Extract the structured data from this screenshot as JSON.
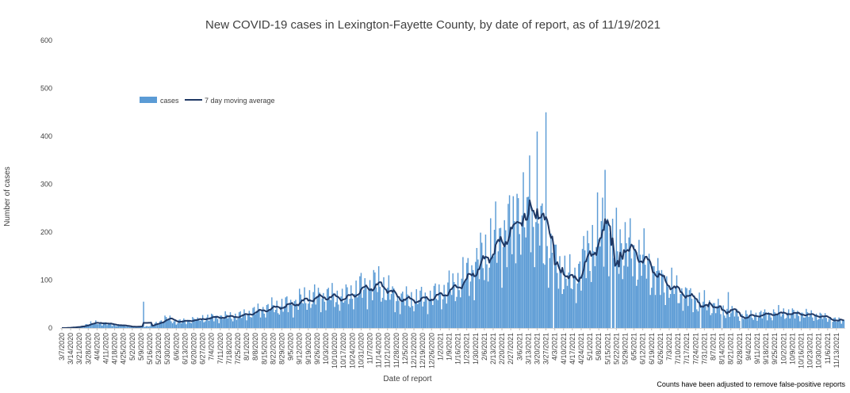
{
  "chart_data": {
    "type": "bar",
    "title": "New COVID-19 cases in Lexington-Fayette County, by date of report, as of 11/19/2021",
    "xlabel": "Date of report",
    "ylabel": "Number of cases",
    "ylim": [
      0,
      600
    ],
    "yticks": [
      "0",
      "100",
      "200",
      "300",
      "400",
      "500",
      "600"
    ],
    "grid": false,
    "legend_position": "top-left",
    "footnote": "Counts have been adjusted to remove false-positive reports",
    "colors": {
      "cases": "#5b9bd5",
      "average": "#1f3864"
    },
    "date_range": [
      "3/7/2020",
      "11/19/2021"
    ],
    "x_ticks": [
      "3/7/2020",
      "3/14/2020",
      "3/21/2020",
      "3/28/2020",
      "4/4/2020",
      "4/11/2020",
      "4/18/2020",
      "4/25/2020",
      "5/2/2020",
      "5/9/2020",
      "5/16/2020",
      "5/23/2020",
      "5/30/2020",
      "6/6/2020",
      "6/13/2020",
      "6/20/2020",
      "6/27/2020",
      "7/4/2020",
      "7/11/2020",
      "7/18/2020",
      "7/25/2020",
      "8/1/2020",
      "8/8/2020",
      "8/15/2020",
      "8/22/2020",
      "8/29/2020",
      "9/5/2020",
      "9/12/2020",
      "9/19/2020",
      "9/26/2020",
      "10/3/2020",
      "10/10/2020",
      "10/17/2020",
      "10/24/2020",
      "10/31/2020",
      "11/7/2020",
      "11/14/2020",
      "11/21/2020",
      "11/28/2020",
      "12/5/2020",
      "12/12/2020",
      "12/19/2020",
      "12/26/2020",
      "1/2/2021",
      "1/9/2021",
      "1/16/2021",
      "1/23/2021",
      "1/30/2021",
      "2/6/2021",
      "2/13/2021",
      "2/20/2021",
      "2/27/2021",
      "3/6/2021",
      "3/13/2021",
      "3/20/2021",
      "3/27/2021",
      "4/3/2021",
      "4/10/2021",
      "4/17/2021",
      "4/24/2021",
      "5/1/2021",
      "5/8/2021",
      "5/15/2021",
      "5/22/2021",
      "5/29/2021",
      "6/5/2021",
      "6/12/2021",
      "6/19/2021",
      "6/26/2021",
      "7/3/2021",
      "7/10/2021",
      "7/17/2021",
      "7/24/2021",
      "7/31/2021",
      "8/7/2021",
      "8/14/2021",
      "8/21/2021",
      "8/28/2021",
      "9/4/2021",
      "9/11/2021",
      "9/18/2021",
      "9/25/2021",
      "10/2/2021",
      "10/9/2021",
      "10/16/2021",
      "10/23/2021",
      "10/30/2021",
      "11/6/2021",
      "11/13/2021"
    ],
    "anchors": [
      [
        0,
        0
      ],
      [
        14,
        3
      ],
      [
        21,
        10
      ],
      [
        28,
        14
      ],
      [
        42,
        8
      ],
      [
        56,
        3
      ],
      [
        70,
        5
      ],
      [
        77,
        15
      ],
      [
        84,
        25
      ],
      [
        91,
        15
      ],
      [
        98,
        18
      ],
      [
        112,
        25
      ],
      [
        126,
        28
      ],
      [
        140,
        30
      ],
      [
        154,
        42
      ],
      [
        168,
        52
      ],
      [
        182,
        60
      ],
      [
        196,
        75
      ],
      [
        210,
        80
      ],
      [
        224,
        75
      ],
      [
        238,
        100
      ],
      [
        252,
        110
      ],
      [
        266,
        75
      ],
      [
        280,
        70
      ],
      [
        294,
        78
      ],
      [
        308,
        95
      ],
      [
        322,
        130
      ],
      [
        336,
        180
      ],
      [
        350,
        230
      ],
      [
        364,
        265
      ],
      [
        378,
        265
      ],
      [
        392,
        160
      ],
      [
        406,
        115
      ],
      [
        420,
        200
      ],
      [
        434,
        255
      ],
      [
        448,
        200
      ],
      [
        462,
        170
      ],
      [
        476,
        120
      ],
      [
        490,
        90
      ],
      [
        504,
        70
      ],
      [
        518,
        55
      ],
      [
        532,
        40
      ],
      [
        546,
        30
      ],
      [
        560,
        35
      ],
      [
        574,
        38
      ],
      [
        588,
        35
      ],
      [
        602,
        30
      ],
      [
        616,
        20
      ],
      [
        630,
        15
      ],
      [
        644,
        10
      ],
      [
        658,
        8
      ],
      [
        672,
        10
      ],
      [
        686,
        30
      ],
      [
        700,
        75
      ],
      [
        714,
        120
      ],
      [
        728,
        180
      ],
      [
        742,
        230
      ],
      [
        756,
        240
      ],
      [
        770,
        210
      ],
      [
        784,
        150
      ],
      [
        798,
        100
      ],
      [
        812,
        75
      ],
      [
        826,
        65
      ],
      [
        840,
        55
      ],
      [
        854,
        60
      ],
      [
        868,
        65
      ],
      [
        875,
        65
      ],
      [
        887,
        68
      ]
    ],
    "spikes": [
      [
        56,
        3
      ],
      [
        65,
        55
      ],
      [
        108,
        22
      ],
      [
        308,
        120
      ],
      [
        362,
        280
      ],
      [
        372,
        360
      ],
      [
        378,
        410
      ],
      [
        385,
        450
      ],
      [
        432,
        330
      ],
      [
        440,
        240
      ],
      [
        530,
        75
      ],
      [
        645,
        55
      ],
      [
        710,
        140
      ],
      [
        721,
        155
      ],
      [
        728,
        220
      ],
      [
        740,
        300
      ],
      [
        746,
        350
      ],
      [
        758,
        260
      ],
      [
        762,
        350
      ],
      [
        771,
        335
      ],
      [
        780,
        275
      ],
      [
        785,
        280
      ],
      [
        800,
        270
      ],
      [
        812,
        245
      ],
      [
        830,
        160
      ],
      [
        850,
        155
      ],
      [
        862,
        150
      ],
      [
        870,
        148
      ],
      [
        876,
        155
      ],
      [
        880,
        85
      ]
    ],
    "dip_days": [
      391,
      437,
      440,
      508,
      525,
      540,
      612,
      640
    ]
  },
  "legend": {
    "cases_label": "cases",
    "average_label": "7 day moving average"
  },
  "note_text": "Counts have been adjusted to remove false-positive reports"
}
